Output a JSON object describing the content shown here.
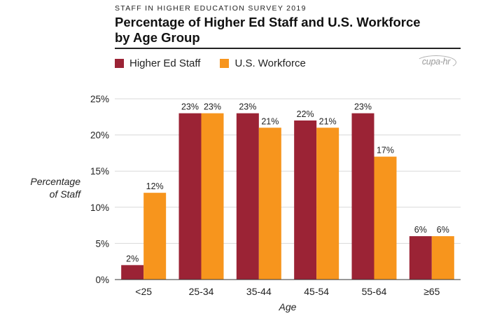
{
  "header": {
    "supertitle": "STAFF IN HIGHER EDUCATION SURVEY 2019",
    "title_line1": "Percentage of Higher Ed Staff and U.S. Workforce",
    "title_line2": "by Age Group"
  },
  "logo": {
    "text": "cupa-hr"
  },
  "colors": {
    "higher_ed": "#9b2335",
    "workforce": "#f7951d",
    "grid": "#d9d9d9"
  },
  "chart_data": {
    "type": "bar",
    "xlabel": "Age",
    "ylabel_line1": "Percentage",
    "ylabel_line2": "of Staff",
    "ylim": [
      0,
      25
    ],
    "yticks": [
      "0%",
      "5%",
      "10%",
      "15%",
      "20%",
      "25%"
    ],
    "categories": [
      "<25",
      "25-34",
      "35-44",
      "45-54",
      "55-64",
      "≥65"
    ],
    "legend_position": "top-left",
    "grid": "horizontal",
    "series": [
      {
        "name": "Higher Ed Staff",
        "values": [
          2,
          23,
          23,
          22,
          23,
          6
        ],
        "labels": [
          "2%",
          "23%",
          "23%",
          "22%",
          "23%",
          "6%"
        ]
      },
      {
        "name": "U.S. Workforce",
        "values": [
          12,
          23,
          21,
          21,
          17,
          6
        ],
        "labels": [
          "12%",
          "23%",
          "21%",
          "21%",
          "17%",
          "6%"
        ]
      }
    ]
  }
}
